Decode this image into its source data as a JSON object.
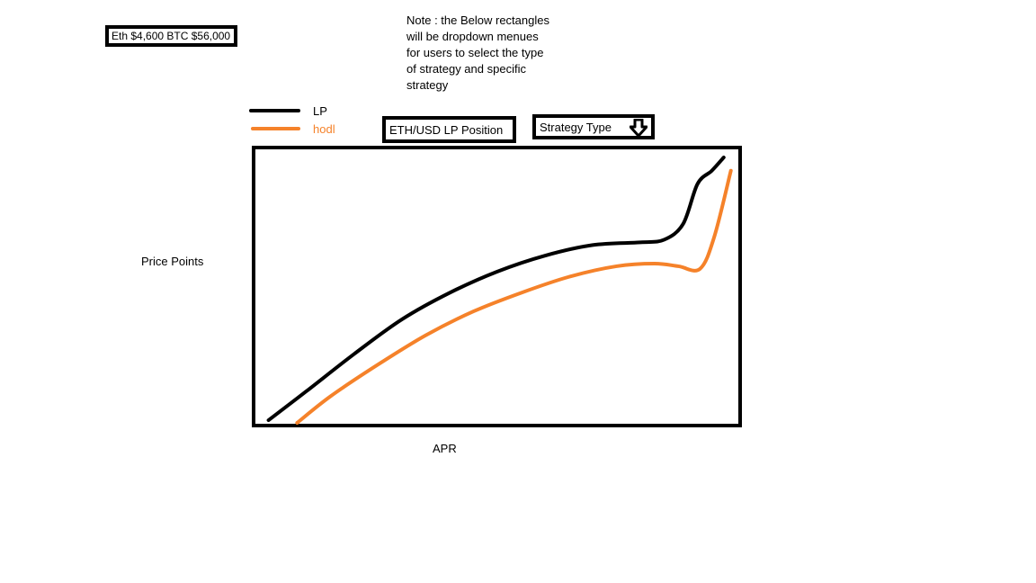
{
  "ticker": {
    "text": "Eth $4,600  BTC $56,000"
  },
  "note": {
    "text": "Note : the Below rectangles will be dropdown menues for users to select the type of strategy and specific strategy"
  },
  "dropdowns": {
    "position": {
      "selected": "ETH/USD LP Position"
    },
    "strategy_type": {
      "selected": "Strategy Type",
      "icon": "arrow-down-icon"
    }
  },
  "chart_data": {
    "type": "line",
    "xlabel": "APR",
    "ylabel": "Price Points",
    "grid": false,
    "legend_position": "top-left",
    "colors": {
      "LP": "#000000",
      "hodl": "#f5822a"
    },
    "series": [
      {
        "name": "LP",
        "x": [
          0.02,
          0.1,
          0.2,
          0.3,
          0.4,
          0.5,
          0.6,
          0.7,
          0.8,
          0.85,
          0.89,
          0.92,
          0.95,
          0.975
        ],
        "y": [
          0.01,
          0.12,
          0.26,
          0.39,
          0.49,
          0.57,
          0.63,
          0.67,
          0.68,
          0.69,
          0.75,
          0.9,
          0.95,
          1.0
        ]
      },
      {
        "name": "hodl",
        "x": [
          0.08,
          0.15,
          0.25,
          0.35,
          0.45,
          0.55,
          0.65,
          0.75,
          0.83,
          0.88,
          0.925,
          0.955,
          0.99
        ],
        "y": [
          0.0,
          0.1,
          0.22,
          0.33,
          0.42,
          0.49,
          0.55,
          0.59,
          0.6,
          0.59,
          0.58,
          0.7,
          0.95
        ]
      }
    ]
  }
}
